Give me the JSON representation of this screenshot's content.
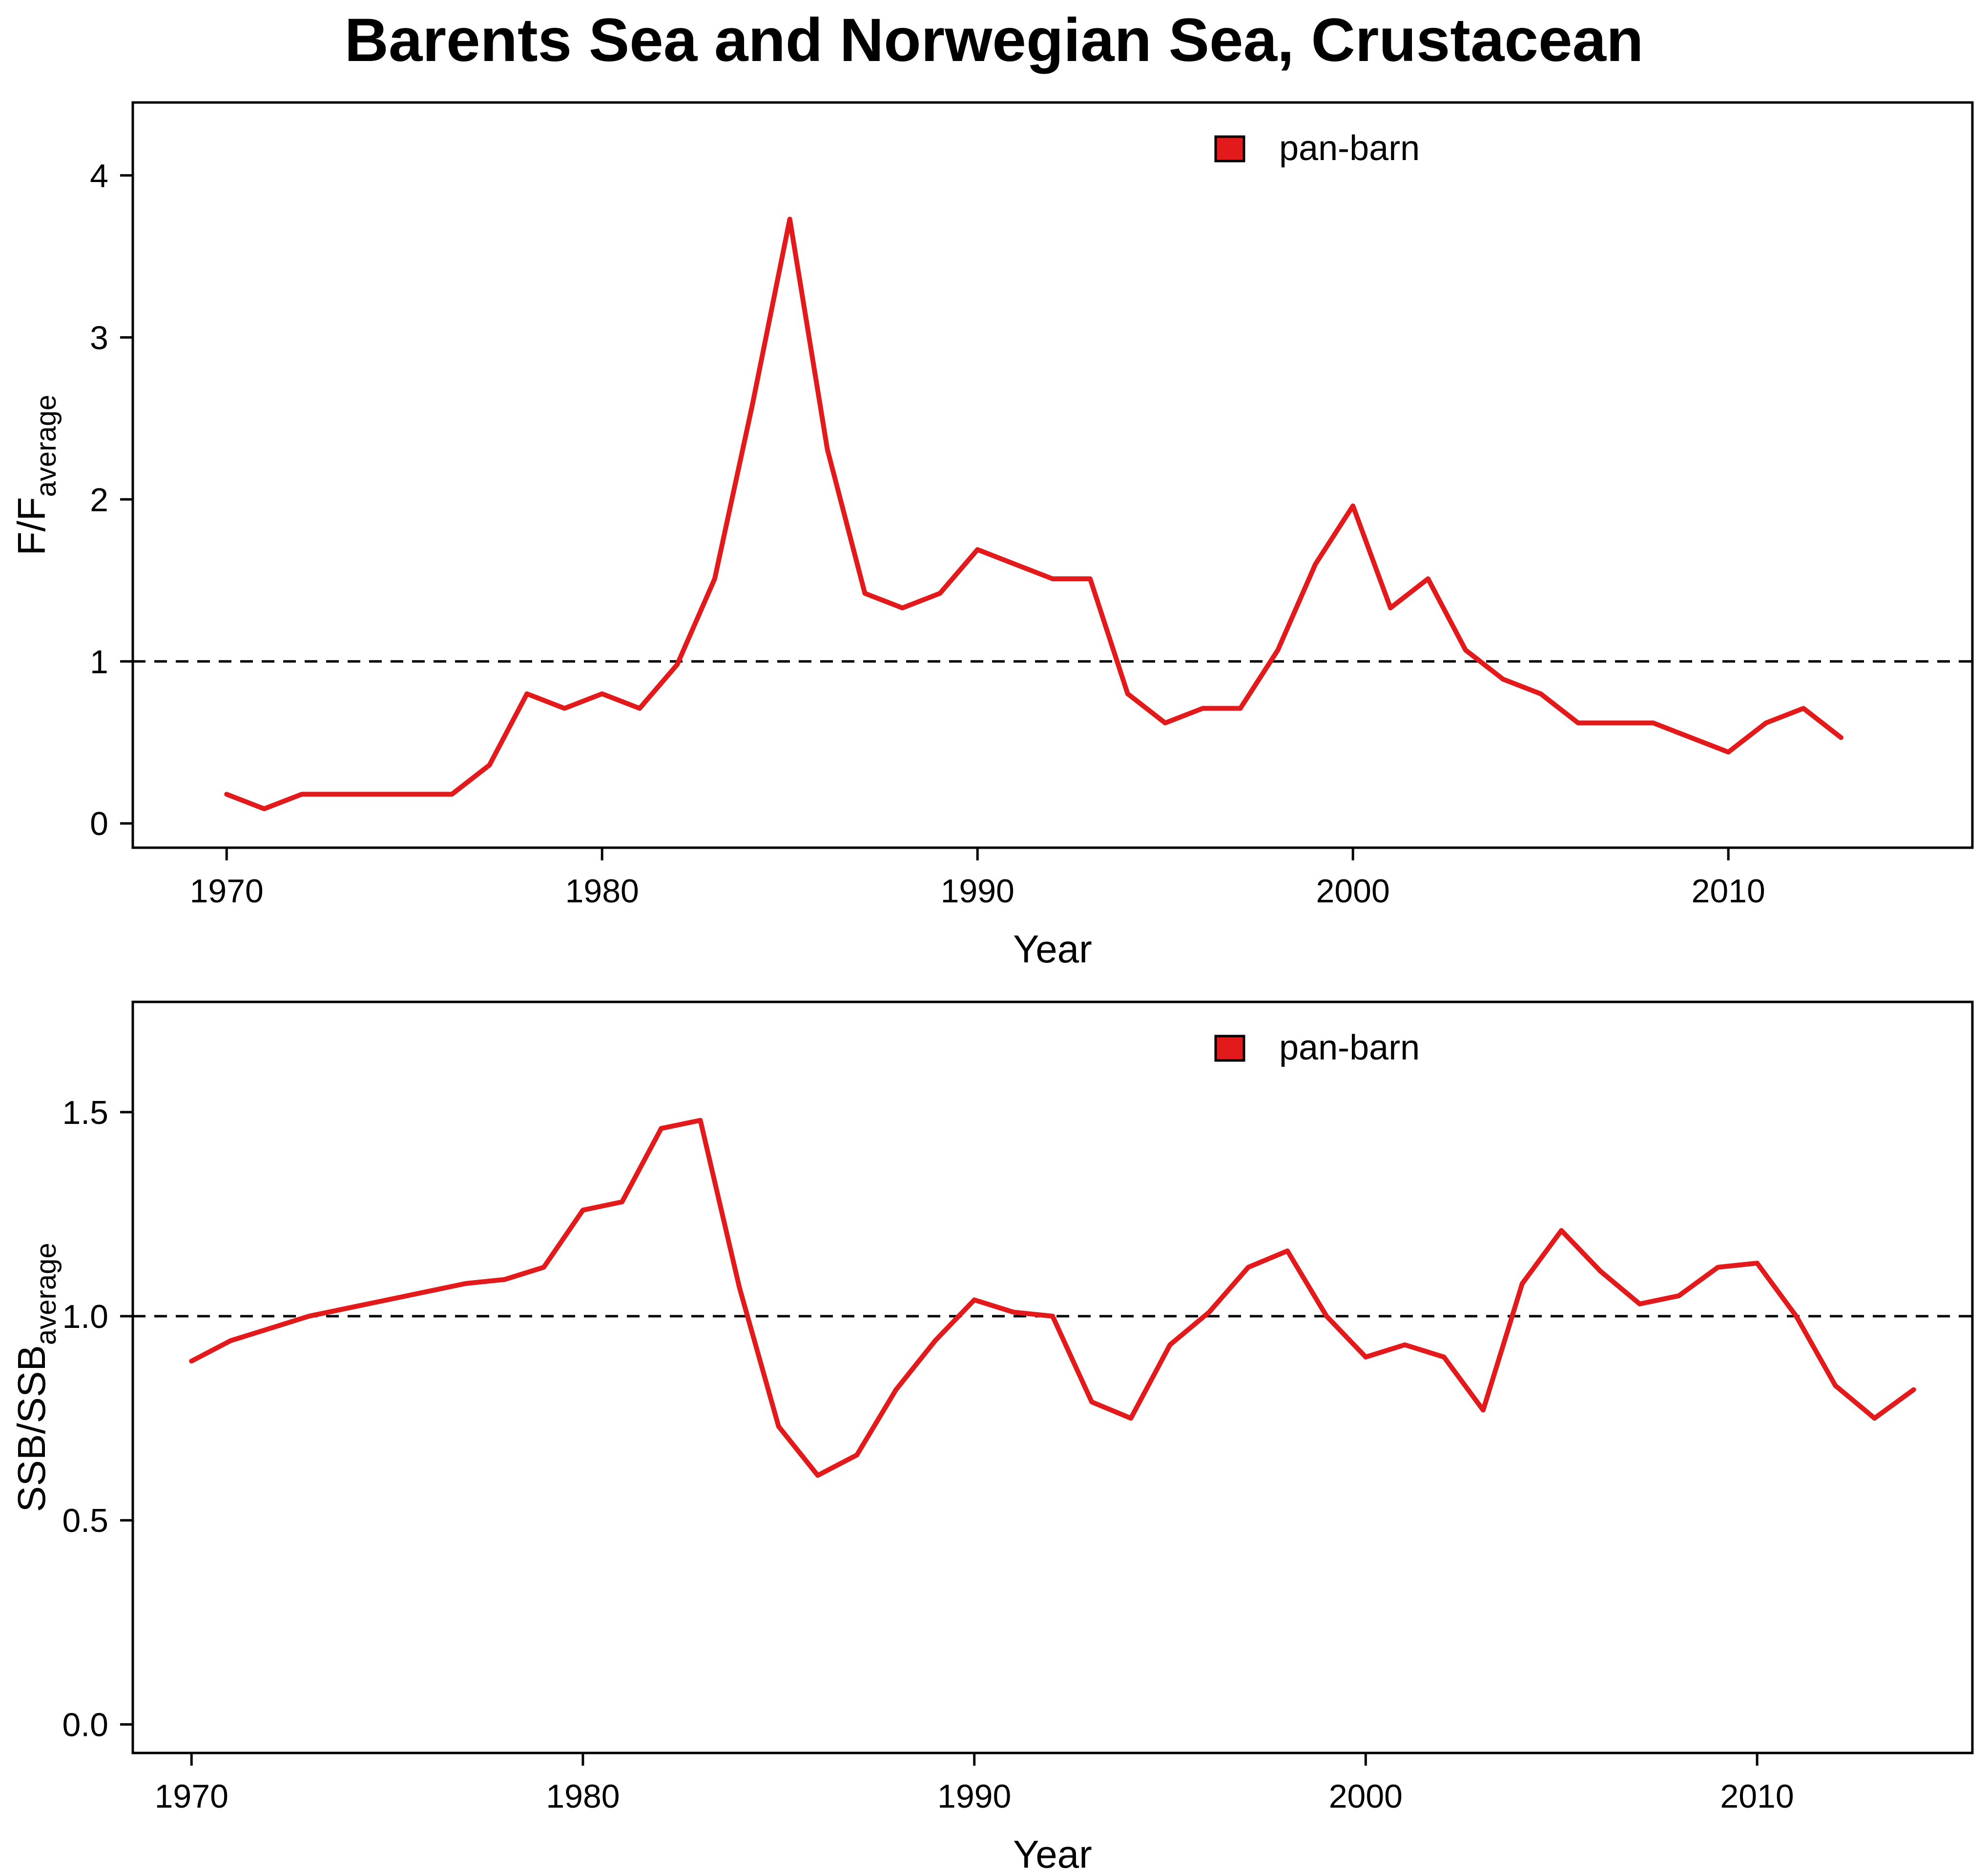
{
  "figure_title": "Barents Sea and Norwegian Sea, Crustacean",
  "colors": {
    "series": "#e31a1c",
    "axis": "#000000",
    "reference": "#000000"
  },
  "chart_data": [
    {
      "type": "line",
      "xlabel": "Year",
      "ylabel_main": "F/F",
      "ylabel_sub": "average",
      "xlim": [
        1967.5,
        2016.5
      ],
      "ylim": [
        -0.15,
        4.45
      ],
      "xticks": [
        1970,
        1980,
        1990,
        2000,
        2010
      ],
      "yticks": [
        0,
        1,
        2,
        3,
        4
      ],
      "ytick_labels": [
        "0",
        "1",
        "2",
        "3",
        "4"
      ],
      "reference_line": 1,
      "grid": false,
      "legend": "top-center",
      "series": [
        {
          "name": "pan-barn",
          "x": [
            1970,
            1971,
            1972,
            1973,
            1974,
            1975,
            1976,
            1977,
            1978,
            1979,
            1980,
            1981,
            1982,
            1983,
            1984,
            1985,
            1986,
            1987,
            1988,
            1989,
            1990,
            1991,
            1992,
            1993,
            1994,
            1995,
            1996,
            1997,
            1998,
            1999,
            2000,
            2001,
            2002,
            2003,
            2004,
            2005,
            2006,
            2007,
            2008,
            2009,
            2010,
            2011,
            2012,
            2013
          ],
          "y": [
            0.18,
            0.09,
            0.18,
            0.18,
            0.18,
            0.18,
            0.18,
            0.36,
            0.8,
            0.71,
            0.8,
            0.71,
            0.98,
            1.51,
            2.58,
            3.73,
            2.31,
            1.42,
            1.33,
            1.42,
            1.69,
            1.6,
            1.51,
            1.51,
            0.8,
            0.62,
            0.71,
            0.71,
            1.07,
            1.6,
            1.96,
            1.33,
            1.51,
            1.07,
            0.89,
            0.8,
            0.62,
            0.62,
            0.62,
            0.53,
            0.44,
            0.62,
            0.71,
            0.53
          ]
        }
      ]
    },
    {
      "type": "line",
      "xlabel": "Year",
      "ylabel_main": "SSB/SSB",
      "ylabel_sub": "average",
      "xlim": [
        1968.5,
        2015.5
      ],
      "ylim": [
        -0.07,
        1.77
      ],
      "xticks": [
        1970,
        1980,
        1990,
        2000,
        2010
      ],
      "yticks": [
        0,
        0.5,
        1,
        1.5
      ],
      "ytick_labels": [
        "0.0",
        "0.5",
        "1.0",
        "1.5"
      ],
      "reference_line": 1,
      "grid": false,
      "legend": "top-center",
      "series": [
        {
          "name": "pan-barn",
          "x": [
            1970,
            1971,
            1972,
            1973,
            1974,
            1975,
            1976,
            1977,
            1978,
            1979,
            1980,
            1981,
            1982,
            1983,
            1984,
            1985,
            1986,
            1987,
            1988,
            1989,
            1990,
            1991,
            1992,
            1993,
            1994,
            1995,
            1996,
            1997,
            1998,
            1999,
            2000,
            2001,
            2002,
            2003,
            2004,
            2005,
            2006,
            2007,
            2008,
            2009,
            2010,
            2011,
            2012,
            2013,
            2014
          ],
          "y": [
            0.89,
            0.94,
            0.97,
            1.0,
            1.02,
            1.04,
            1.06,
            1.08,
            1.09,
            1.12,
            1.26,
            1.28,
            1.46,
            1.48,
            1.07,
            0.73,
            0.61,
            0.66,
            0.82,
            0.94,
            1.04,
            1.01,
            1.0,
            0.79,
            0.75,
            0.93,
            1.01,
            1.12,
            1.16,
            1.0,
            0.9,
            0.93,
            0.9,
            0.77,
            1.08,
            1.21,
            1.11,
            1.03,
            1.05,
            1.12,
            1.13,
            1.0,
            0.83,
            0.75,
            0.82
          ]
        }
      ]
    }
  ]
}
